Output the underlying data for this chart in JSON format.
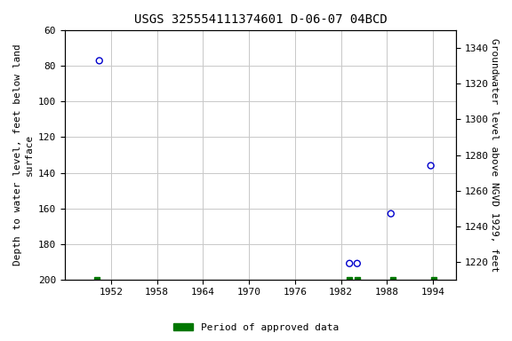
{
  "title": "USGS 325554111374601 D-06-07 04BCD",
  "ylabel_left": "Depth to water level, feet below land\nsurface",
  "ylabel_right": "Groundwater level above NGVD 1929, feet",
  "scatter_x": [
    1950.5,
    1983.1,
    1984.1,
    1988.5,
    1993.7
  ],
  "scatter_y": [
    77,
    191,
    191,
    163,
    136
  ],
  "green_x": [
    1950.2,
    1983.1,
    1984.1,
    1988.8,
    1994.1
  ],
  "xlim": [
    1946,
    1997
  ],
  "xticks": [
    1952,
    1958,
    1964,
    1970,
    1976,
    1982,
    1988,
    1994
  ],
  "ylim_left_bottom": 200,
  "ylim_left_top": 60,
  "yticks_left": [
    60,
    80,
    100,
    120,
    140,
    160,
    180,
    200
  ],
  "ylim_right_bottom": 1210,
  "ylim_right_top": 1350,
  "yticks_right": [
    1340,
    1320,
    1300,
    1280,
    1260,
    1240,
    1220
  ],
  "scatter_color": "#0000cc",
  "green_color": "#007700",
  "bg_color": "#ffffff",
  "grid_color": "#c8c8c8",
  "title_fontsize": 10,
  "label_fontsize": 8,
  "tick_fontsize": 8,
  "legend_label": "Period of approved data"
}
